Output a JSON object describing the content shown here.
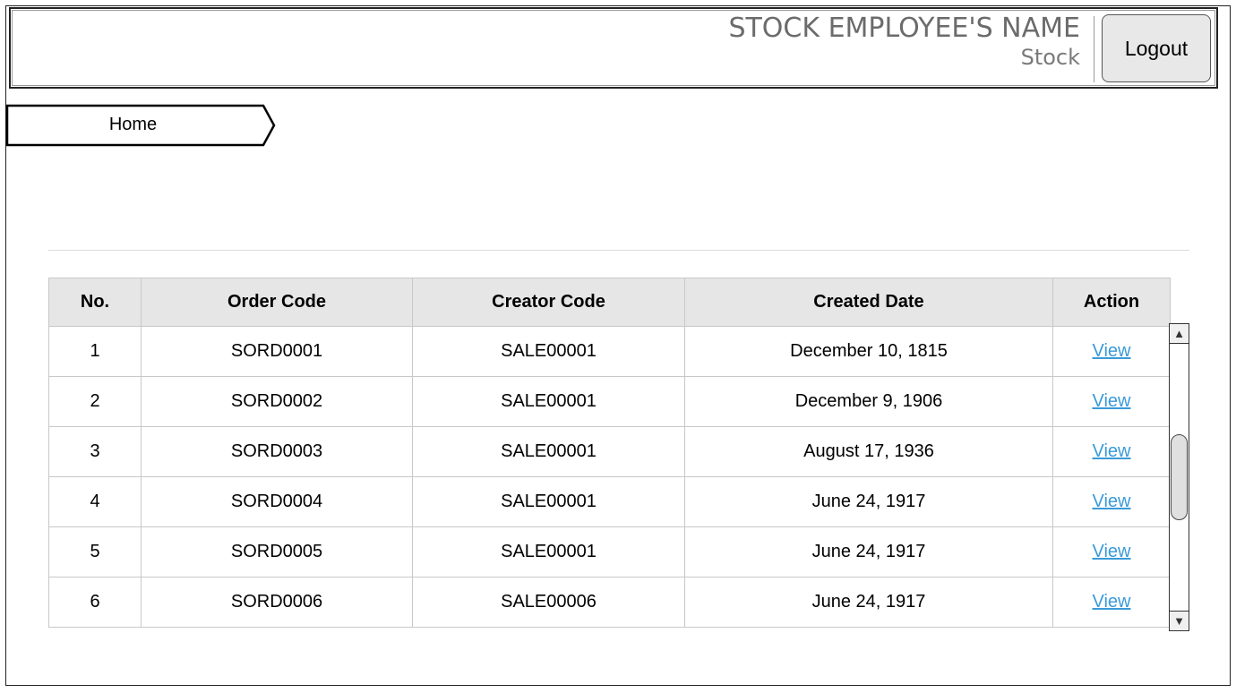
{
  "header": {
    "user_name": "STOCK EMPLOYEE'S NAME",
    "user_role": "Stock",
    "logout_label": "Logout"
  },
  "breadcrumb": {
    "home_label": "Home"
  },
  "table": {
    "columns": [
      "No.",
      "Order Code",
      "Creator Code",
      "Created Date",
      "Action"
    ],
    "rows": [
      {
        "no": "1",
        "order_code": "SORD0001",
        "creator_code": "SALE00001",
        "created_date": "December 10, 1815",
        "action": "View"
      },
      {
        "no": "2",
        "order_code": "SORD0002",
        "creator_code": "SALE00001",
        "created_date": "December 9, 1906",
        "action": "View"
      },
      {
        "no": "3",
        "order_code": "SORD0003",
        "creator_code": "SALE00001",
        "created_date": "August 17, 1936",
        "action": "View"
      },
      {
        "no": "4",
        "order_code": "SORD0004",
        "creator_code": "SALE00001",
        "created_date": "June 24, 1917",
        "action": "View"
      },
      {
        "no": "5",
        "order_code": "SORD0005",
        "creator_code": "SALE00001",
        "created_date": "June 24, 1917",
        "action": "View"
      },
      {
        "no": "6",
        "order_code": "SORD0006",
        "creator_code": "SALE00006",
        "created_date": "June 24, 1917",
        "action": "View"
      }
    ]
  },
  "icons": {
    "scroll_up": "triangle-up-icon",
    "scroll_down": "triangle-down-icon"
  },
  "colors": {
    "link": "#3a9ad9",
    "header_bg": "#e6e6e6"
  }
}
